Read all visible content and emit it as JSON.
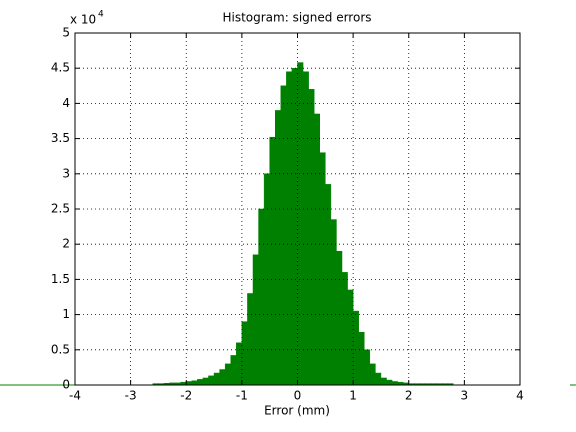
{
  "chart_data": {
    "type": "histogram",
    "title": "Histogram: signed errors",
    "x_label": "Error (mm)",
    "y_multiplier": "x 10",
    "y_multiplier_exponent": "4",
    "color": "#008000",
    "grid": true,
    "bins": [
      -4,
      -3.9,
      -3.8,
      -3.7,
      -3.6,
      -3.5,
      -3.4,
      -3.3,
      -3.2,
      -3.1,
      -3,
      -2.9,
      -2.8,
      -2.7,
      -2.6,
      -2.5,
      -2.4,
      -2.3,
      -2.2,
      -2.1,
      -2,
      -1.9,
      -1.8,
      -1.7,
      -1.6,
      -1.5,
      -1.4,
      -1.3,
      -1.2,
      -1.1,
      -1,
      -0.9,
      -0.8,
      -0.7,
      -0.6,
      -0.5,
      -0.4,
      -0.3,
      -0.2,
      -0.1,
      0,
      0.1,
      0.2,
      0.3,
      0.4,
      0.5,
      0.6,
      0.7,
      0.8,
      0.9,
      1,
      1.1,
      1.2,
      1.3,
      1.4,
      1.5,
      1.6,
      1.7,
      1.8,
      1.9,
      2,
      2.1,
      2.2,
      2.3,
      2.4,
      2.5,
      2.6,
      2.7,
      2.8,
      2.9,
      3,
      3.1,
      3.2,
      3.3,
      3.4,
      3.5,
      3.6,
      3.7,
      3.8,
      3.9,
      4
    ],
    "values": [
      0.003,
      0.003,
      0.003,
      0.003,
      0.003,
      0.003,
      0.003,
      0.003,
      0.003,
      0.003,
      0.003,
      0.003,
      0.003,
      0.003,
      0.02,
      0.02,
      0.025,
      0.03,
      0.03,
      0.04,
      0.05,
      0.06,
      0.08,
      0.1,
      0.13,
      0.17,
      0.22,
      0.3,
      0.42,
      0.6,
      0.9,
      1.3,
      1.85,
      2.5,
      3.0,
      3.52,
      3.9,
      4.25,
      4.45,
      4.5,
      4.58,
      4.45,
      4.2,
      3.85,
      3.3,
      2.85,
      2.35,
      1.9,
      1.6,
      1.35,
      1.05,
      0.75,
      0.5,
      0.3,
      0.17,
      0.1,
      0.07,
      0.05,
      0.04,
      0.03,
      0.02,
      0.02,
      0.02,
      0.02,
      0.02,
      0.02,
      0.02,
      0.02,
      0.003,
      0.003,
      0.003,
      0.003,
      0.003,
      0.003,
      0.003,
      0.003,
      0.003,
      0.003,
      0.003,
      0.003
    ],
    "xlim": [
      -4,
      4
    ],
    "xticks": [
      -4,
      -3,
      -2,
      -1,
      0,
      1,
      2,
      3,
      4
    ],
    "ylim": [
      0,
      5
    ],
    "yticks": [
      0,
      0.5,
      1,
      1.5,
      2,
      2.5,
      3,
      3.5,
      4,
      4.5,
      5
    ]
  }
}
